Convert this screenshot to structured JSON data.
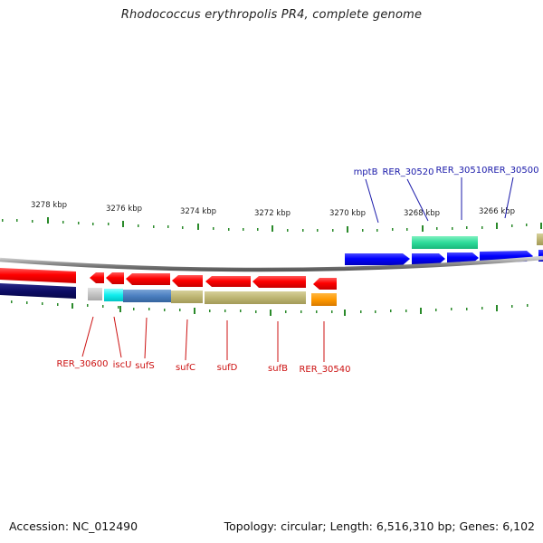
{
  "title": "Rhodococcus erythropolis PR4, complete genome",
  "accession_label": "Accession: NC_012490",
  "summary": "Topology: circular; Length: 6,516,310 bp; Genes: 6,102",
  "colors": {
    "forward_cds": "#0000ee",
    "reverse_cds": "#ee0000",
    "ruler": "#2a8a2a",
    "backbone": "#888888",
    "red_label": "#cc1111",
    "blue_label": "#1a1aaa"
  },
  "ruler_labels": [
    "3278 kbp",
    "3276 kbp",
    "3274 kbp",
    "3272 kbp",
    "3270 kbp",
    "3268 kbp",
    "3266 kbp"
  ],
  "top_gene_labels": [
    "mptB",
    "RER_30520",
    "RER_30510",
    "RER_30500"
  ],
  "bottom_gene_labels": [
    "RER_30600",
    "iscU",
    "sufS",
    "sufC",
    "sufD",
    "sufB",
    "RER_30540"
  ]
}
